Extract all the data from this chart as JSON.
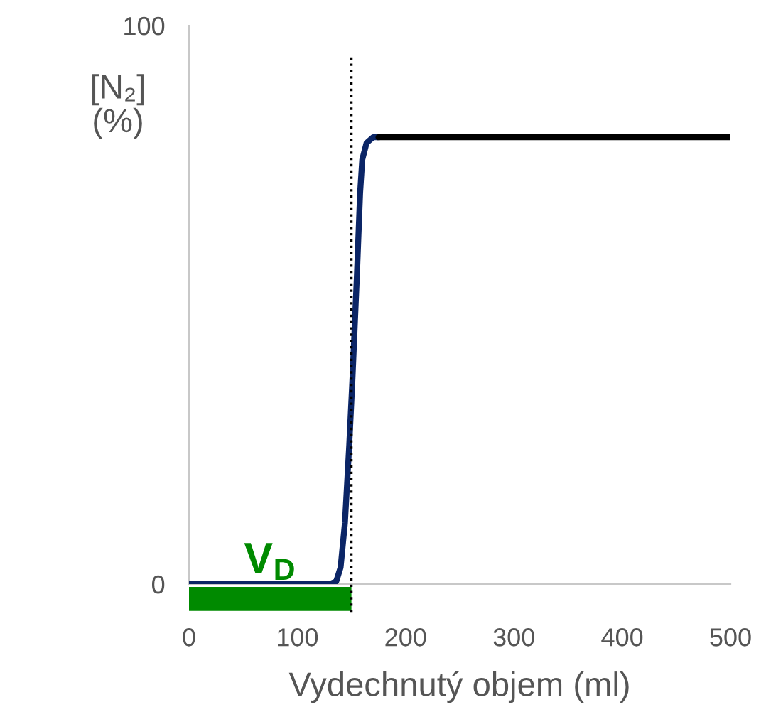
{
  "chart_data": {
    "type": "line",
    "xlabel": "Vydechnutý objem (ml)",
    "ylabel": "[N₂]\n(%)",
    "series": [
      {
        "color": "#0b2566",
        "x": [
          0,
          130,
          136,
          140,
          144,
          148,
          151,
          155,
          158,
          160,
          164,
          170,
          175
        ],
        "values": [
          0,
          0,
          0.5,
          3,
          11,
          25,
          37,
          55,
          70,
          76,
          79,
          80,
          80
        ]
      },
      {
        "color": "#000000",
        "x": [
          175,
          500
        ],
        "values": [
          80,
          80
        ]
      }
    ],
    "xlim": [
      0,
      500
    ],
    "xticks": [
      0,
      100,
      200,
      300,
      400,
      500
    ],
    "ylim": [
      0,
      100
    ],
    "yticks": [
      0,
      100
    ],
    "ref_lines": [
      {
        "axis": "x",
        "value": 150,
        "color": "#000000",
        "line_style": "dotted"
      }
    ],
    "annotations": [
      "V$_{D}$"
    ],
    "grid": false,
    "legend": false,
    "marker": "none",
    "line_style": "solid"
  }
}
